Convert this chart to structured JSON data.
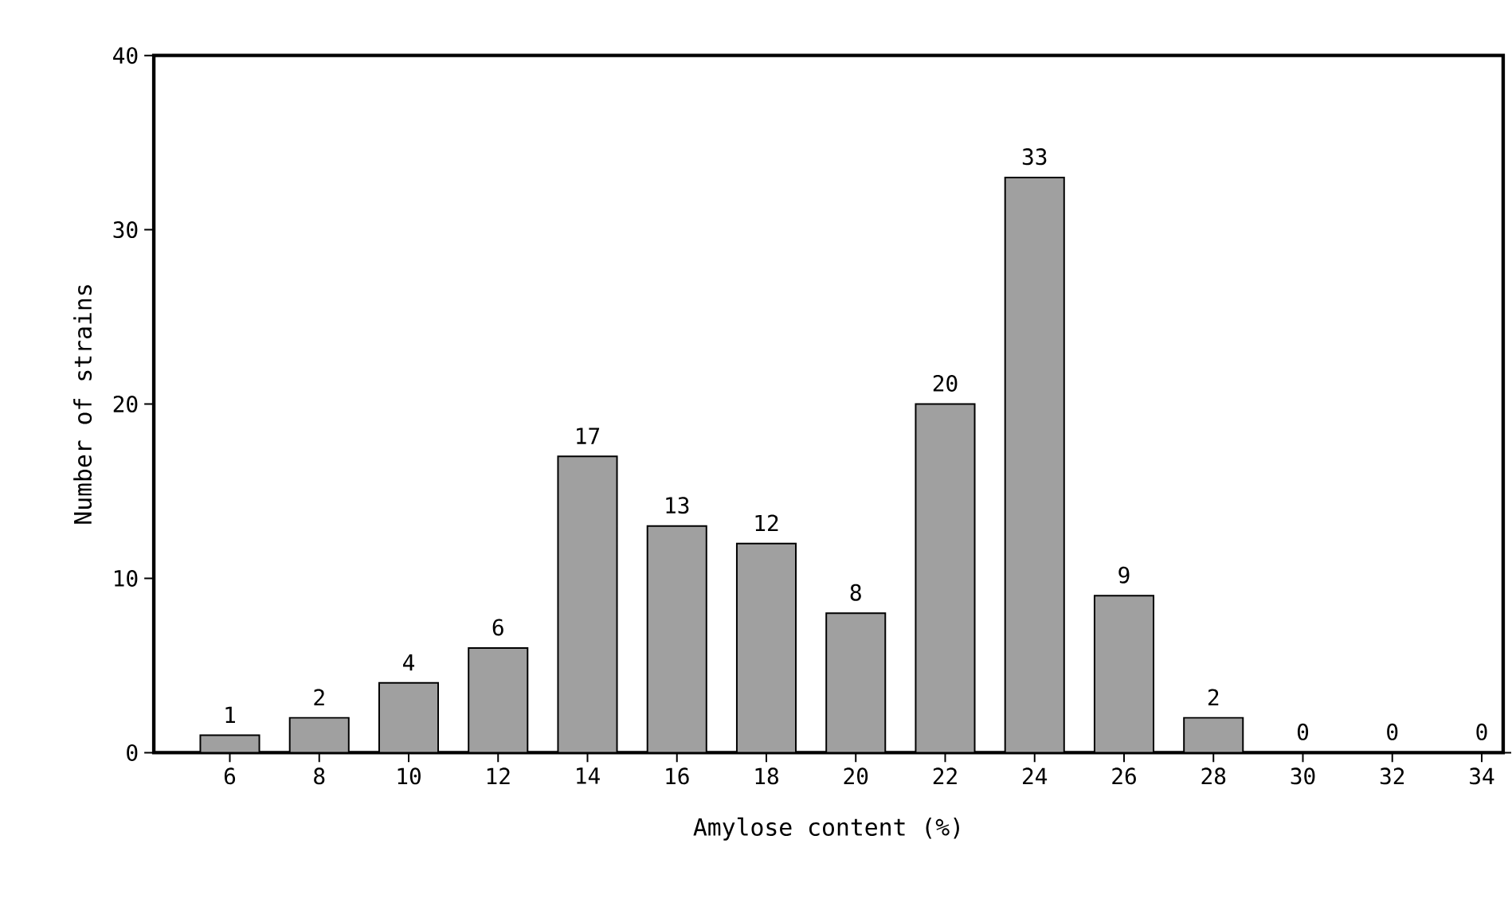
{
  "chart_data": {
    "type": "bar",
    "xlabel": "Amylose content (%)",
    "ylabel": "Number of strains",
    "categories": [
      "6",
      "8",
      "10",
      "12",
      "14",
      "16",
      "18",
      "20",
      "22",
      "24",
      "26",
      "28",
      "30",
      "32",
      "34"
    ],
    "values": [
      1,
      2,
      4,
      6,
      17,
      13,
      12,
      8,
      20,
      33,
      9,
      2,
      0,
      0,
      0
    ],
    "color": "#a0a0a0",
    "ylim": [
      0,
      40
    ],
    "yticks": [
      0,
      10,
      20,
      30,
      40
    ],
    "data_labels": true
  }
}
